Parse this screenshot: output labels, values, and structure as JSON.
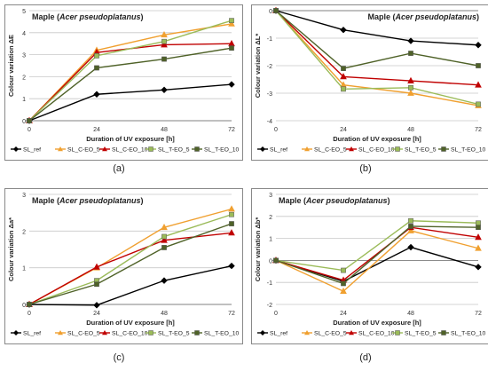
{
  "chart_data": [
    {
      "type": "line",
      "panel_label": "(a)",
      "title_prefix": "Maple (",
      "title_species": "Acer pseudoplatanus",
      "title_suffix": ")",
      "xlabel": "Duration of UV exposure  [h]",
      "ylabel": "Colour variation  ΔE",
      "x": [
        0,
        24,
        48,
        72
      ],
      "x_ticks": [
        "0",
        "24",
        "48",
        "72"
      ],
      "ylim": [
        0,
        5
      ],
      "y_ticks": [
        "0",
        "1",
        "2",
        "3",
        "4",
        "5"
      ],
      "grid": true,
      "series": [
        {
          "name": "SL_ref",
          "values": [
            0,
            1.2,
            1.4,
            1.65
          ]
        },
        {
          "name": "SL_C-EO_5",
          "values": [
            0,
            3.2,
            3.9,
            4.4
          ]
        },
        {
          "name": "SL_C-EO_10",
          "values": [
            0,
            3.1,
            3.45,
            3.5
          ]
        },
        {
          "name": "SL_T-EO_5",
          "values": [
            0,
            2.95,
            3.6,
            4.55
          ]
        },
        {
          "name": "SL_T-EO_10",
          "values": [
            0,
            2.4,
            2.8,
            3.3
          ]
        }
      ]
    },
    {
      "type": "line",
      "panel_label": "(b)",
      "title_prefix": "Maple (",
      "title_species": "Acer pseudoplatanus",
      "title_suffix": ")",
      "xlabel": "Duration of UV exposure  [h]",
      "ylabel": "Colour variation  ΔL*",
      "x": [
        0,
        24,
        48,
        72
      ],
      "x_ticks": [
        "0",
        "24",
        "48",
        "72"
      ],
      "ylim": [
        -4,
        0
      ],
      "y_ticks": [
        "-4",
        "-3",
        "-2",
        "-1",
        "0"
      ],
      "grid": true,
      "series": [
        {
          "name": "SL_ref",
          "values": [
            0,
            -0.7,
            -1.1,
            -1.25
          ]
        },
        {
          "name": "SL_C-EO_5",
          "values": [
            0,
            -2.7,
            -3.0,
            -3.45
          ]
        },
        {
          "name": "SL_C-EO_10",
          "values": [
            0,
            -2.4,
            -2.55,
            -2.7
          ]
        },
        {
          "name": "SL_T-EO_5",
          "values": [
            0,
            -2.85,
            -2.8,
            -3.4
          ]
        },
        {
          "name": "SL_T-EO_10",
          "values": [
            0,
            -2.1,
            -1.55,
            -2.0
          ]
        }
      ]
    },
    {
      "type": "line",
      "panel_label": "(c)",
      "title_prefix": "Maple (",
      "title_species": "Acer pseudoplatanus",
      "title_suffix": ")",
      "xlabel": "Duration of UV exposure  [h]",
      "ylabel": "Colour variation  Δa*",
      "x": [
        0,
        24,
        48,
        72
      ],
      "x_ticks": [
        "0",
        "24",
        "48",
        "72"
      ],
      "ylim": [
        0,
        3
      ],
      "y_ticks": [
        "0",
        "1",
        "2",
        "3"
      ],
      "grid": true,
      "series": [
        {
          "name": "SL_ref",
          "values": [
            0,
            -0.02,
            0.65,
            1.05
          ]
        },
        {
          "name": "SL_C-EO_5",
          "values": [
            0,
            1.0,
            2.1,
            2.6
          ]
        },
        {
          "name": "SL_C-EO_10",
          "values": [
            0,
            1.02,
            1.75,
            1.95
          ]
        },
        {
          "name": "SL_T-EO_5",
          "values": [
            0,
            0.65,
            1.85,
            2.45
          ]
        },
        {
          "name": "SL_T-EO_10",
          "values": [
            0,
            0.55,
            1.55,
            2.2
          ]
        }
      ]
    },
    {
      "type": "line",
      "panel_label": "(d)",
      "title_prefix": "Maple (",
      "title_species": "Acer pseudoplatanus",
      "title_suffix": ")",
      "xlabel": "Duration of UV exposure  [h]",
      "ylabel": "Colour variation  Δb*",
      "x": [
        0,
        24,
        48,
        72
      ],
      "x_ticks": [
        "0",
        "24",
        "48",
        "72"
      ],
      "ylim": [
        -2,
        3
      ],
      "y_ticks": [
        "-2",
        "-1",
        "0",
        "1",
        "2",
        "3"
      ],
      "grid": true,
      "series": [
        {
          "name": "SL_ref",
          "values": [
            0,
            -0.95,
            0.6,
            -0.3
          ]
        },
        {
          "name": "SL_C-EO_5",
          "values": [
            0,
            -1.4,
            1.35,
            0.55
          ]
        },
        {
          "name": "SL_C-EO_10",
          "values": [
            0,
            -0.9,
            1.5,
            1.05
          ]
        },
        {
          "name": "SL_T-EO_5",
          "values": [
            0,
            -0.45,
            1.8,
            1.7
          ]
        },
        {
          "name": "SL_T-EO_10",
          "values": [
            0,
            -1.05,
            1.55,
            1.5
          ]
        }
      ]
    }
  ],
  "series_styles": [
    {
      "color": "#000000",
      "marker": "diamond"
    },
    {
      "color": "#f0a030",
      "marker": "triangle"
    },
    {
      "color": "#c00000",
      "marker": "triangle"
    },
    {
      "color": "#9bbb59",
      "marker": "square"
    },
    {
      "color": "#4f6228",
      "marker": "square"
    }
  ]
}
